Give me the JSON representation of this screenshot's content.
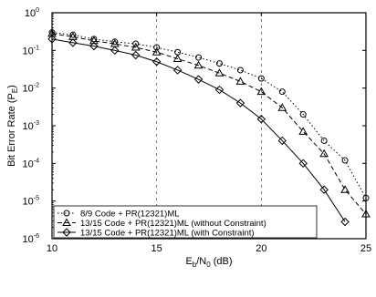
{
  "chart_data": {
    "type": "line",
    "xlabel_main": "E",
    "xlabel_sub1": "b",
    "xlabel_mid": "/N",
    "xlabel_sub2": "0",
    "xlabel_unit": " (dB)",
    "ylabel": "Bit Error Rate (P",
    "ylabel_sub": "E",
    "ylabel_end": ")",
    "xlim": [
      10,
      25
    ],
    "ylim_log10": [
      -6,
      0
    ],
    "yscale": "log",
    "grid": "dashed vertical",
    "x_ticks": [
      10,
      15,
      20,
      25
    ],
    "x_tick_labels": [
      "10",
      "15",
      "20",
      "25"
    ],
    "y_ticks_exp": [
      0,
      -1,
      -2,
      -3,
      -4,
      -5,
      -6
    ],
    "y_tick_labels": [
      "10",
      "10",
      "10",
      "10",
      "10",
      "10",
      "10"
    ],
    "y_tick_exps": [
      "0",
      "-1",
      "-2",
      "-3",
      "-4",
      "-5",
      "-6"
    ],
    "legend_position": "bottom-left",
    "series": [
      {
        "name": "8/9 Code + PR(12321)ML",
        "marker": "circle",
        "linestyle": "dotted",
        "x": [
          10,
          11,
          12,
          13,
          14,
          15,
          16,
          17,
          18,
          19,
          20,
          21,
          22,
          23,
          24,
          25
        ],
        "y": [
          0.3,
          0.26,
          0.2,
          0.17,
          0.15,
          0.12,
          0.09,
          0.065,
          0.045,
          0.03,
          0.018,
          0.008,
          0.002,
          0.0004,
          0.00012,
          1.2e-05
        ]
      },
      {
        "name": "13/15 Code + PR(12321)ML (without Constraint)",
        "marker": "triangle",
        "linestyle": "dashed",
        "x": [
          10,
          11,
          12,
          13,
          14,
          15,
          16,
          17,
          18,
          19,
          20,
          21,
          22,
          23,
          24,
          25
        ],
        "y": [
          0.28,
          0.23,
          0.18,
          0.15,
          0.12,
          0.09,
          0.06,
          0.04,
          0.025,
          0.015,
          0.008,
          0.003,
          0.0007,
          0.00018,
          2e-05,
          4.5e-06
        ]
      },
      {
        "name": "13/15 Code + PR(12321)ML (with Constraint)",
        "marker": "diamond",
        "linestyle": "solid",
        "x": [
          10,
          11,
          12,
          13,
          14,
          15,
          16,
          17,
          18,
          19,
          20,
          21,
          22,
          23,
          24
        ],
        "y": [
          0.2,
          0.16,
          0.13,
          0.1,
          0.075,
          0.05,
          0.03,
          0.017,
          0.009,
          0.004,
          0.0015,
          0.0004,
          0.0001,
          2e-05,
          2.8e-06
        ]
      }
    ]
  }
}
